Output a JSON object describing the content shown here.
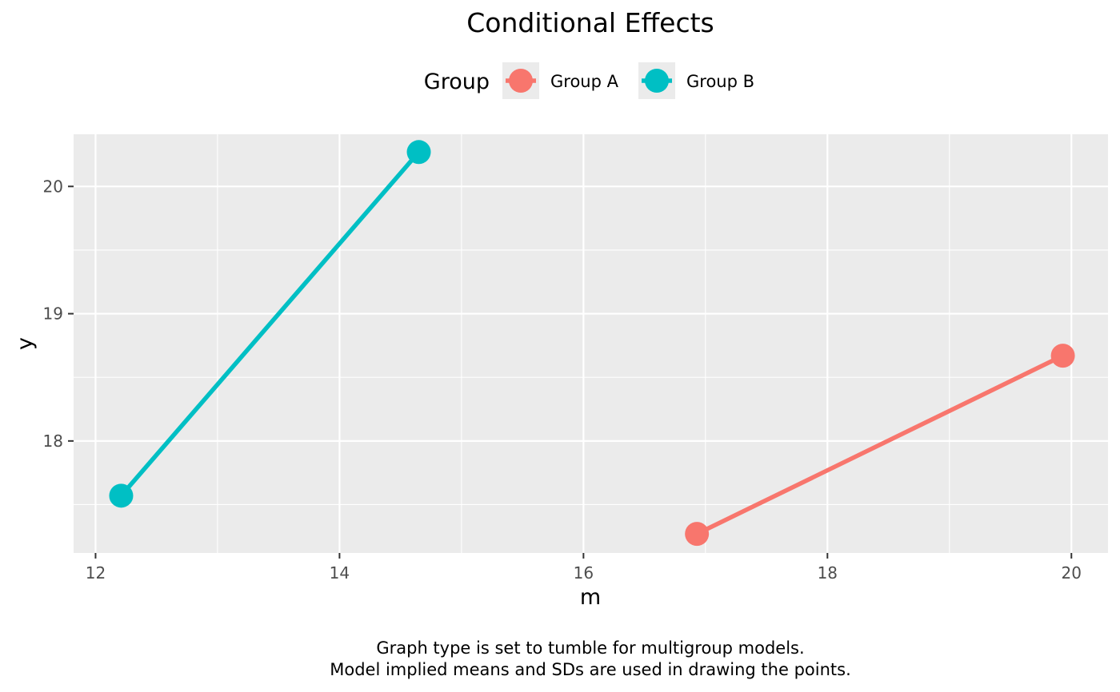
{
  "chart_data": {
    "type": "line",
    "title": "Conditional Effects",
    "xlabel": "m",
    "ylabel": "y",
    "xlim": [
      11.82,
      20.3
    ],
    "ylim": [
      17.12,
      20.41
    ],
    "x_ticks": [
      12,
      14,
      16,
      18,
      20
    ],
    "x_tick_labels": [
      "12",
      "14",
      "16",
      "18",
      "20"
    ],
    "x_minor_ticks": [
      13,
      15,
      17,
      19
    ],
    "y_ticks": [
      18,
      19,
      20
    ],
    "y_tick_labels": [
      "18",
      "19",
      "20"
    ],
    "y_minor_ticks": [
      17.5,
      18.5,
      19.5
    ],
    "grid": true,
    "legend": {
      "title": "Group",
      "position": "top"
    },
    "series": [
      {
        "name": "Group A",
        "color": "#F8766D",
        "points": [
          {
            "x": 16.93,
            "y": 17.27
          },
          {
            "x": 19.93,
            "y": 18.67
          }
        ]
      },
      {
        "name": "Group B",
        "color": "#00BFC4",
        "points": [
          {
            "x": 12.21,
            "y": 17.57
          },
          {
            "x": 14.65,
            "y": 20.27
          }
        ]
      }
    ],
    "caption": [
      "Graph type is set to tumble for multigroup models.",
      "Model implied means and SDs are used in drawing the points."
    ]
  }
}
